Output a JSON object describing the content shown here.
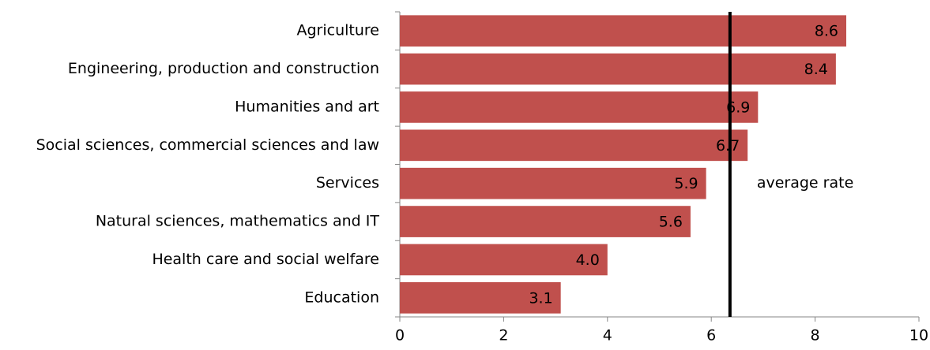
{
  "chart_data": {
    "type": "hbar",
    "categories": [
      "Agriculture",
      "Engineering, production and construction",
      "Humanities and art",
      "Social sciences, commercial sciences and law",
      "Services",
      "Natural sciences, mathematics and IT",
      "Health care and social welfare",
      "Education"
    ],
    "values": [
      8.6,
      8.4,
      6.9,
      6.7,
      5.9,
      5.6,
      4.0,
      3.1
    ],
    "value_labels": [
      "8.6",
      "8.4",
      "6.9",
      "6.7",
      "5.9",
      "5.6",
      "4.0",
      "3.1"
    ],
    "color": "#c0504d",
    "xlim": [
      0,
      10
    ],
    "xticks": [
      0,
      2,
      4,
      6,
      8,
      10
    ],
    "reference_line": {
      "value": 6.36,
      "label": "average rate",
      "color": "#000000"
    }
  }
}
